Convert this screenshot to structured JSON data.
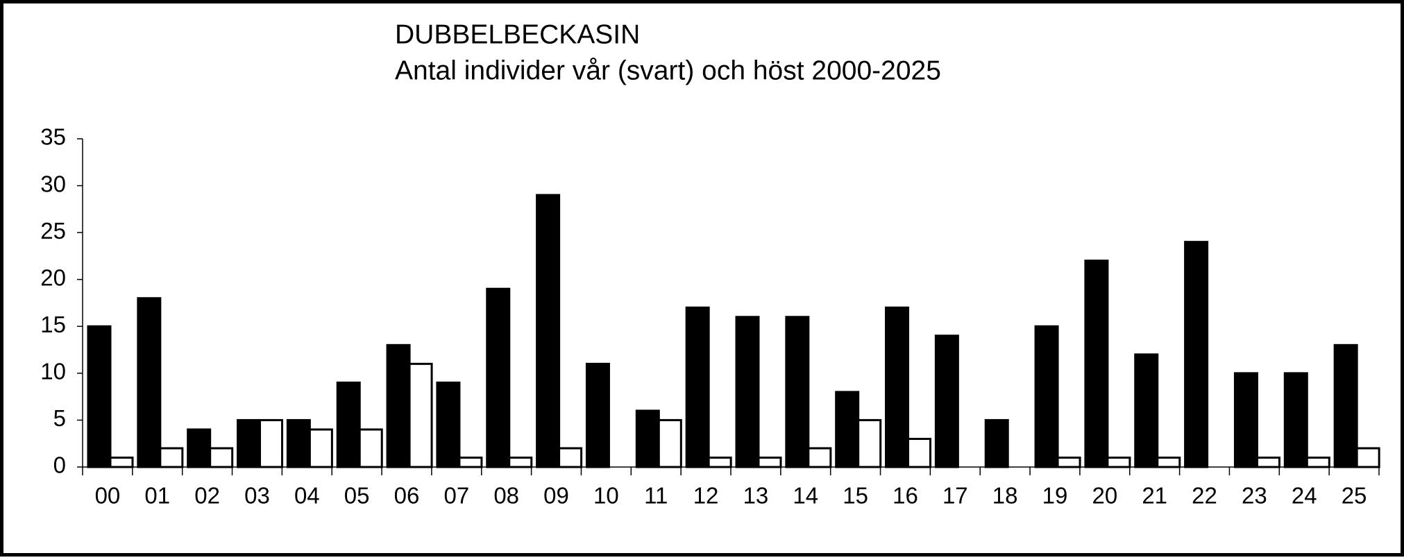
{
  "chart_data": {
    "type": "bar",
    "title": "DUBBELBECKASIN",
    "subtitle": "Antal individer vår (svart) och höst 2000-2025",
    "categories": [
      "00",
      "01",
      "02",
      "03",
      "04",
      "05",
      "06",
      "07",
      "08",
      "09",
      "10",
      "11",
      "12",
      "13",
      "14",
      "15",
      "16",
      "17",
      "18",
      "19",
      "20",
      "21",
      "22",
      "23",
      "24",
      "25"
    ],
    "series": [
      {
        "color": "#000000",
        "values": [
          15,
          18,
          4,
          5,
          5,
          9,
          13,
          9,
          19,
          29,
          11,
          6,
          17,
          16,
          16,
          8,
          17,
          14,
          5,
          15,
          22,
          12,
          24,
          10,
          10,
          13
        ]
      },
      {
        "color": "#ffffff",
        "values": [
          1,
          2,
          2,
          5,
          4,
          4,
          11,
          1,
          1,
          2,
          0,
          5,
          1,
          1,
          2,
          5,
          3,
          0,
          0,
          1,
          1,
          1,
          0,
          1,
          1,
          2
        ]
      }
    ],
    "ylim": [
      0,
      35
    ],
    "yticks": [
      0,
      5,
      10,
      15,
      20,
      25,
      30,
      35
    ]
  }
}
